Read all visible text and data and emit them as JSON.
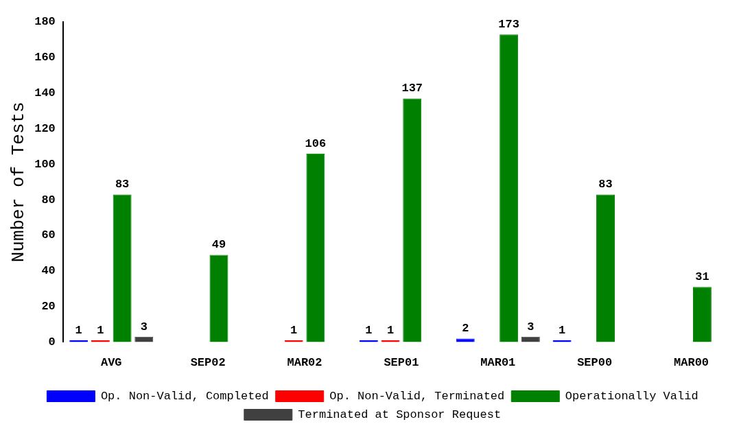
{
  "chart_data": {
    "type": "bar",
    "ylabel": "Number of Tests",
    "categories": [
      "AVG",
      "SEP02",
      "MAR02",
      "SEP01",
      "MAR01",
      "SEP00",
      "MAR00"
    ],
    "series": [
      {
        "name": "Op. Non-Valid, Completed",
        "color": "#0000ff",
        "values": [
          1,
          null,
          null,
          1,
          2,
          1,
          null
        ]
      },
      {
        "name": "Op. Non-Valid, Terminated",
        "color": "#ff0000",
        "values": [
          1,
          null,
          1,
          1,
          null,
          null,
          null
        ]
      },
      {
        "name": "Operationally Valid",
        "color": "#008000",
        "values": [
          83,
          49,
          106,
          137,
          173,
          83,
          31
        ]
      },
      {
        "name": "Terminated at Sponsor Request",
        "color": "#404040",
        "values": [
          3,
          null,
          null,
          null,
          3,
          null,
          null
        ]
      }
    ],
    "ylim": [
      0,
      180
    ],
    "yticks": [
      0,
      20,
      40,
      60,
      80,
      100,
      120,
      140,
      160,
      180
    ],
    "grid": false,
    "legend": "bottom",
    "data_labels": true
  }
}
